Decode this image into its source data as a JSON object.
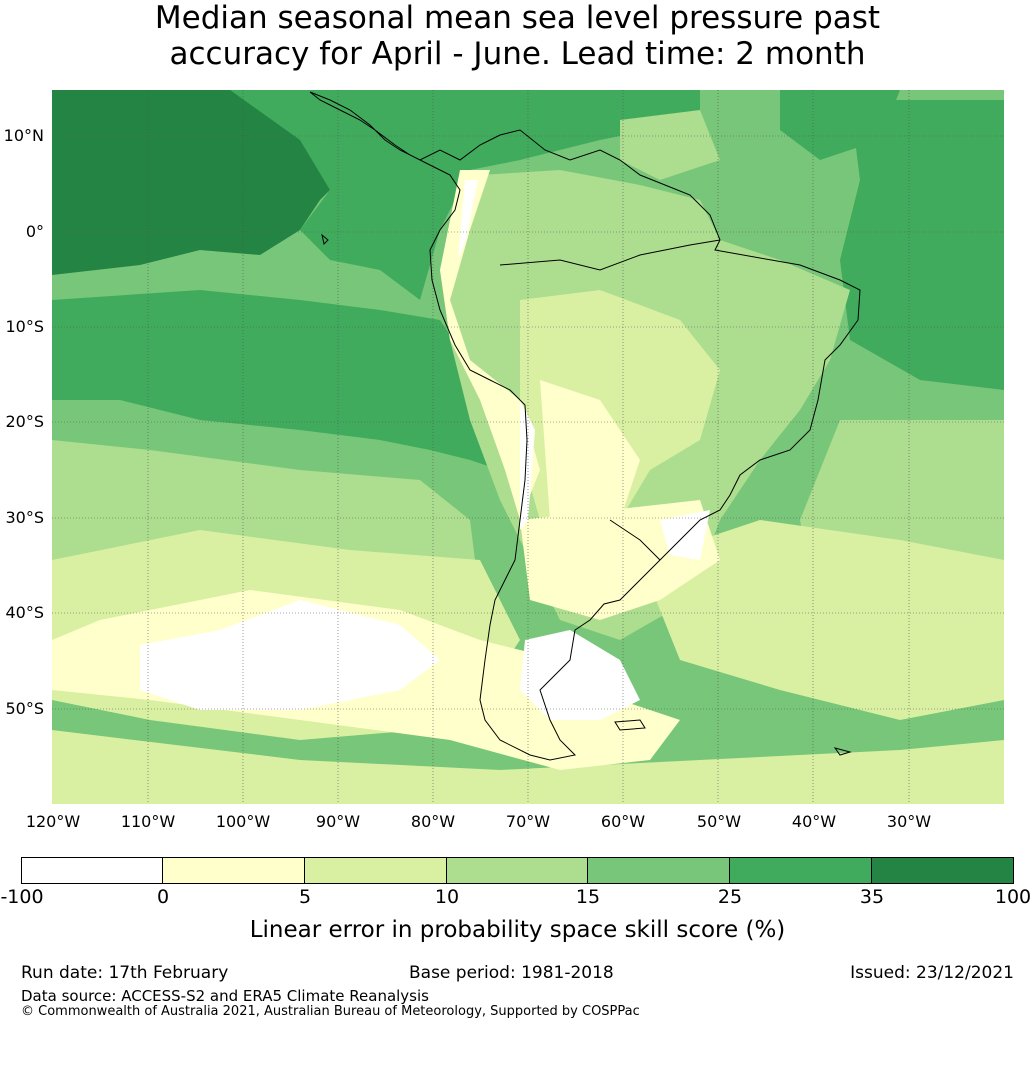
{
  "title": {
    "line1": "Median seasonal mean sea level pressure past",
    "line2": "accuracy for April - June. Lead time: 2 month"
  },
  "map": {
    "lat_labels": [
      "10°N",
      "0°",
      "10°S",
      "20°S",
      "30°S",
      "40°S",
      "50°S"
    ],
    "lon_labels": [
      "120°W",
      "110°W",
      "100°W",
      "90°W",
      "80°W",
      "70°W",
      "60°W",
      "50°W",
      "40°W",
      "30°W"
    ]
  },
  "colorbar": {
    "ticks": [
      "-100",
      "0",
      "5",
      "10",
      "15",
      "25",
      "35",
      "100"
    ],
    "colors": [
      "#ffffff",
      "#ffffcc",
      "#d9f0a3",
      "#addd8e",
      "#78c679",
      "#41ab5d",
      "#238443"
    ],
    "label": "Linear error in probability space skill score (%)"
  },
  "footer": {
    "run_date": "Run date: 17th February",
    "base_period": "Base period: 1981-2018",
    "issued": "Issued: 23/12/2021",
    "data_source": "Data source: ACCESS-S2 and ERA5 Climate Reanalysis",
    "copyright": "© Commonwealth of Australia 2021, Australian Bureau of Meteorology, Supported by COSPPac"
  }
}
